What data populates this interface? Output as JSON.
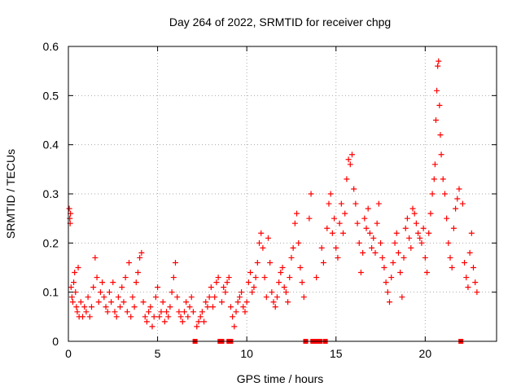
{
  "chart_data": {
    "type": "scatter",
    "title": "Day 264 of 2022, SRMTID for receiver chpg",
    "xlabel": "GPS time / hours",
    "ylabel": "SRMTID / TECUs",
    "xlim": [
      0,
      24
    ],
    "ylim": [
      0,
      0.6
    ],
    "xticks": [
      0,
      5,
      10,
      15,
      20
    ],
    "yticks": [
      0,
      0.1,
      0.2,
      0.3,
      0.4,
      0.5,
      0.6
    ],
    "xtick_labels": [
      "0",
      "5",
      "10",
      "15",
      "20"
    ],
    "ytick_labels": [
      "0",
      "0.1",
      "0.2",
      "0.3",
      "0.4",
      "0.5",
      "0.6"
    ],
    "grid": true,
    "marker": "+",
    "series_color": "#ff0000",
    "baseline_markers_x": [
      7.1,
      8.5,
      8.6,
      9.0,
      9.1,
      13.3,
      13.7,
      13.8,
      14.0,
      14.1,
      14.4,
      22.0
    ],
    "points": [
      [
        0.05,
        0.27
      ],
      [
        0.08,
        0.25
      ],
      [
        0.1,
        0.24
      ],
      [
        0.12,
        0.26
      ],
      [
        0.15,
        0.11
      ],
      [
        0.2,
        0.09
      ],
      [
        0.25,
        0.08
      ],
      [
        0.3,
        0.12
      ],
      [
        0.35,
        0.14
      ],
      [
        0.4,
        0.1
      ],
      [
        0.45,
        0.07
      ],
      [
        0.5,
        0.06
      ],
      [
        0.55,
        0.15
      ],
      [
        0.6,
        0.05
      ],
      [
        0.7,
        0.08
      ],
      [
        0.8,
        0.05
      ],
      [
        0.9,
        0.07
      ],
      [
        1.0,
        0.06
      ],
      [
        1.1,
        0.09
      ],
      [
        1.2,
        0.05
      ],
      [
        1.3,
        0.07
      ],
      [
        1.4,
        0.11
      ],
      [
        1.5,
        0.17
      ],
      [
        1.6,
        0.13
      ],
      [
        1.7,
        0.08
      ],
      [
        1.8,
        0.1
      ],
      [
        1.9,
        0.12
      ],
      [
        2.0,
        0.09
      ],
      [
        2.1,
        0.07
      ],
      [
        2.2,
        0.06
      ],
      [
        2.3,
        0.1
      ],
      [
        2.4,
        0.08
      ],
      [
        2.5,
        0.12
      ],
      [
        2.6,
        0.06
      ],
      [
        2.7,
        0.05
      ],
      [
        2.8,
        0.09
      ],
      [
        2.9,
        0.07
      ],
      [
        3.0,
        0.11
      ],
      [
        3.1,
        0.08
      ],
      [
        3.2,
        0.13
      ],
      [
        3.3,
        0.06
      ],
      [
        3.4,
        0.16
      ],
      [
        3.5,
        0.05
      ],
      [
        3.6,
        0.09
      ],
      [
        3.7,
        0.07
      ],
      [
        3.8,
        0.12
      ],
      [
        3.9,
        0.14
      ],
      [
        4.0,
        0.17
      ],
      [
        4.1,
        0.18
      ],
      [
        4.2,
        0.08
      ],
      [
        4.3,
        0.05
      ],
      [
        4.4,
        0.04
      ],
      [
        4.5,
        0.06
      ],
      [
        4.6,
        0.07
      ],
      [
        4.7,
        0.03
      ],
      [
        4.8,
        0.05
      ],
      [
        4.9,
        0.09
      ],
      [
        5.0,
        0.11
      ],
      [
        5.1,
        0.05
      ],
      [
        5.2,
        0.06
      ],
      [
        5.3,
        0.08
      ],
      [
        5.4,
        0.04
      ],
      [
        5.5,
        0.06
      ],
      [
        5.6,
        0.05
      ],
      [
        5.7,
        0.07
      ],
      [
        5.8,
        0.1
      ],
      [
        5.9,
        0.13
      ],
      [
        6.0,
        0.16
      ],
      [
        6.1,
        0.09
      ],
      [
        6.2,
        0.06
      ],
      [
        6.3,
        0.05
      ],
      [
        6.4,
        0.04
      ],
      [
        6.5,
        0.06
      ],
      [
        6.6,
        0.08
      ],
      [
        6.7,
        0.05
      ],
      [
        6.8,
        0.07
      ],
      [
        6.9,
        0.09
      ],
      [
        7.0,
        0.06
      ],
      [
        7.2,
        0.03
      ],
      [
        7.3,
        0.04
      ],
      [
        7.4,
        0.05
      ],
      [
        7.5,
        0.06
      ],
      [
        7.6,
        0.04
      ],
      [
        7.7,
        0.08
      ],
      [
        7.8,
        0.07
      ],
      [
        7.9,
        0.09
      ],
      [
        8.0,
        0.11
      ],
      [
        8.1,
        0.07
      ],
      [
        8.2,
        0.09
      ],
      [
        8.3,
        0.12
      ],
      [
        8.4,
        0.13
      ],
      [
        8.6,
        0.08
      ],
      [
        8.7,
        0.11
      ],
      [
        8.8,
        0.1
      ],
      [
        8.9,
        0.12
      ],
      [
        9.0,
        0.13
      ],
      [
        9.1,
        0.07
      ],
      [
        9.2,
        0.05
      ],
      [
        9.3,
        0.03
      ],
      [
        9.4,
        0.06
      ],
      [
        9.5,
        0.08
      ],
      [
        9.6,
        0.09
      ],
      [
        9.7,
        0.1
      ],
      [
        9.8,
        0.07
      ],
      [
        9.9,
        0.06
      ],
      [
        10.0,
        0.08
      ],
      [
        10.1,
        0.12
      ],
      [
        10.2,
        0.14
      ],
      [
        10.3,
        0.1
      ],
      [
        10.4,
        0.11
      ],
      [
        10.5,
        0.13
      ],
      [
        10.6,
        0.16
      ],
      [
        10.7,
        0.2
      ],
      [
        10.8,
        0.22
      ],
      [
        10.9,
        0.19
      ],
      [
        11.0,
        0.13
      ],
      [
        11.1,
        0.09
      ],
      [
        11.2,
        0.21
      ],
      [
        11.3,
        0.16
      ],
      [
        11.4,
        0.1
      ],
      [
        11.5,
        0.08
      ],
      [
        11.6,
        0.07
      ],
      [
        11.7,
        0.09
      ],
      [
        11.8,
        0.12
      ],
      [
        11.9,
        0.14
      ],
      [
        12.0,
        0.15
      ],
      [
        12.1,
        0.11
      ],
      [
        12.2,
        0.1
      ],
      [
        12.3,
        0.08
      ],
      [
        12.4,
        0.13
      ],
      [
        12.5,
        0.17
      ],
      [
        12.6,
        0.19
      ],
      [
        12.7,
        0.24
      ],
      [
        12.8,
        0.26
      ],
      [
        12.9,
        0.2
      ],
      [
        13.0,
        0.15
      ],
      [
        13.1,
        0.12
      ],
      [
        13.2,
        0.09
      ],
      [
        13.5,
        0.25
      ],
      [
        13.6,
        0.3
      ],
      [
        13.9,
        0.13
      ],
      [
        14.2,
        0.19
      ],
      [
        14.3,
        0.16
      ],
      [
        14.5,
        0.23
      ],
      [
        14.6,
        0.28
      ],
      [
        14.7,
        0.3
      ],
      [
        14.8,
        0.22
      ],
      [
        14.9,
        0.25
      ],
      [
        15.0,
        0.19
      ],
      [
        15.1,
        0.17
      ],
      [
        15.2,
        0.24
      ],
      [
        15.3,
        0.28
      ],
      [
        15.4,
        0.22
      ],
      [
        15.5,
        0.26
      ],
      [
        15.6,
        0.33
      ],
      [
        15.7,
        0.37
      ],
      [
        15.8,
        0.36
      ],
      [
        15.9,
        0.38
      ],
      [
        16.0,
        0.31
      ],
      [
        16.1,
        0.28
      ],
      [
        16.2,
        0.24
      ],
      [
        16.3,
        0.2
      ],
      [
        16.4,
        0.14
      ],
      [
        16.5,
        0.18
      ],
      [
        16.6,
        0.25
      ],
      [
        16.7,
        0.23
      ],
      [
        16.8,
        0.27
      ],
      [
        16.9,
        0.22
      ],
      [
        17.0,
        0.19
      ],
      [
        17.1,
        0.21
      ],
      [
        17.2,
        0.18
      ],
      [
        17.3,
        0.24
      ],
      [
        17.4,
        0.28
      ],
      [
        17.5,
        0.2
      ],
      [
        17.6,
        0.17
      ],
      [
        17.7,
        0.15
      ],
      [
        17.8,
        0.12
      ],
      [
        17.9,
        0.1
      ],
      [
        18.0,
        0.08
      ],
      [
        18.1,
        0.13
      ],
      [
        18.2,
        0.16
      ],
      [
        18.3,
        0.2
      ],
      [
        18.4,
        0.22
      ],
      [
        18.5,
        0.18
      ],
      [
        18.6,
        0.14
      ],
      [
        18.7,
        0.09
      ],
      [
        18.8,
        0.17
      ],
      [
        18.9,
        0.23
      ],
      [
        19.0,
        0.25
      ],
      [
        19.1,
        0.21
      ],
      [
        19.2,
        0.19
      ],
      [
        19.3,
        0.27
      ],
      [
        19.4,
        0.26
      ],
      [
        19.5,
        0.24
      ],
      [
        19.6,
        0.22
      ],
      [
        19.7,
        0.21
      ],
      [
        19.8,
        0.2
      ],
      [
        19.9,
        0.23
      ],
      [
        20.0,
        0.17
      ],
      [
        20.1,
        0.14
      ],
      [
        20.2,
        0.22
      ],
      [
        20.3,
        0.26
      ],
      [
        20.4,
        0.3
      ],
      [
        20.5,
        0.33
      ],
      [
        20.55,
        0.36
      ],
      [
        20.6,
        0.45
      ],
      [
        20.65,
        0.51
      ],
      [
        20.7,
        0.56
      ],
      [
        20.75,
        0.57
      ],
      [
        20.8,
        0.48
      ],
      [
        20.85,
        0.42
      ],
      [
        20.9,
        0.38
      ],
      [
        21.0,
        0.33
      ],
      [
        21.1,
        0.3
      ],
      [
        21.2,
        0.25
      ],
      [
        21.3,
        0.2
      ],
      [
        21.4,
        0.17
      ],
      [
        21.5,
        0.15
      ],
      [
        21.6,
        0.23
      ],
      [
        21.7,
        0.27
      ],
      [
        21.8,
        0.29
      ],
      [
        21.9,
        0.31
      ],
      [
        22.1,
        0.28
      ],
      [
        22.2,
        0.16
      ],
      [
        22.3,
        0.13
      ],
      [
        22.4,
        0.11
      ],
      [
        22.5,
        0.18
      ],
      [
        22.6,
        0.22
      ],
      [
        22.7,
        0.15
      ],
      [
        22.8,
        0.12
      ],
      [
        22.9,
        0.1
      ]
    ]
  }
}
